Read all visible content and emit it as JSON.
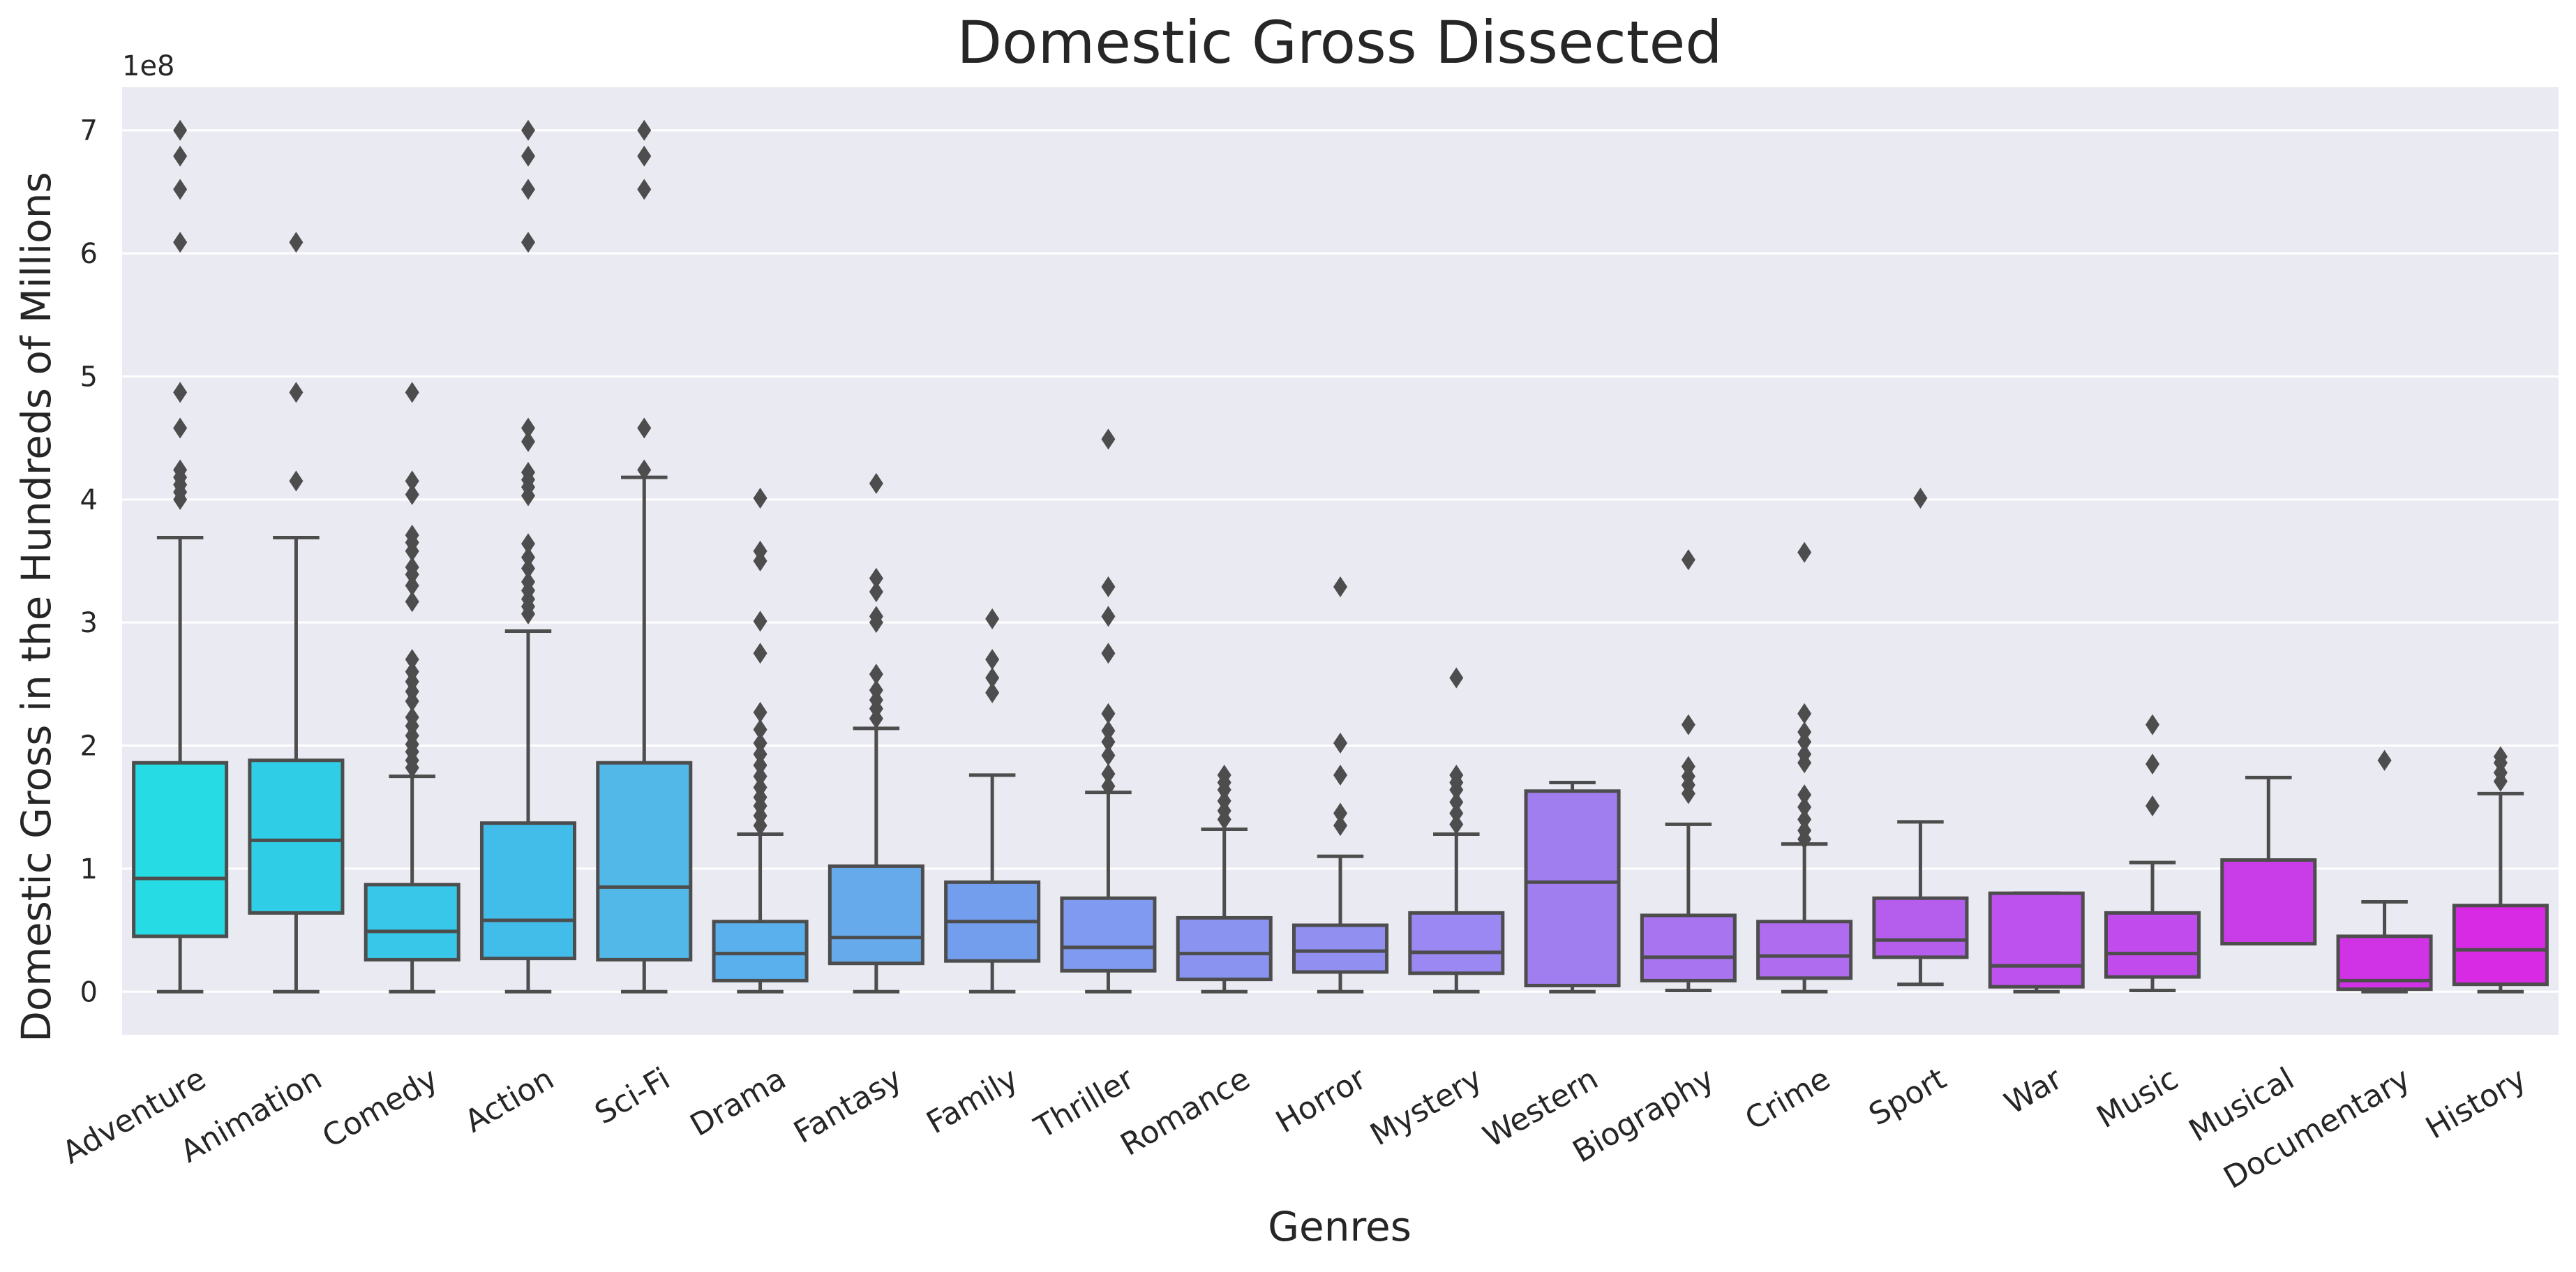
{
  "chart_data": {
    "type": "box",
    "title": "Domestic Gross Dissected",
    "xlabel": "Genres",
    "ylabel": "Domestic Gross in the Hundreds of Millions",
    "y_offset_label": "1e8",
    "y_scale_factor": 100000000,
    "ylim": [
      -0.35,
      7.35
    ],
    "yticks": [
      0,
      1,
      2,
      3,
      4,
      5,
      6,
      7
    ],
    "grid": true,
    "colors": {
      "background": "#eaeaf2",
      "grid": "#ffffff",
      "box_edge": "#4d4d4d",
      "outlier": "#4d4d4d"
    },
    "categories": [
      "Adventure",
      "Animation",
      "Comedy",
      "Action",
      "Sci-Fi",
      "Drama",
      "Fantasy",
      "Family",
      "Thriller",
      "Romance",
      "Horror",
      "Mystery",
      "Western",
      "Biography",
      "Crime",
      "Sport",
      "War",
      "Music",
      "Musical",
      "Documentary",
      "History"
    ],
    "boxes": [
      {
        "whislo": 0.0,
        "q1": 0.45,
        "med": 0.92,
        "q3": 1.86,
        "whishi": 3.69,
        "color": "#26dbe3",
        "fliers": [
          4.0,
          4.06,
          4.12,
          4.18,
          4.24,
          4.58,
          4.87,
          6.09,
          6.52,
          6.79,
          7.0
        ]
      },
      {
        "whislo": 0.0,
        "q1": 0.64,
        "med": 1.23,
        "q3": 1.88,
        "whishi": 3.69,
        "color": "#30cde6",
        "fliers": [
          4.15,
          4.87,
          6.09
        ]
      },
      {
        "whislo": 0.0,
        "q1": 0.26,
        "med": 0.49,
        "q3": 0.87,
        "whishi": 1.75,
        "color": "#38c7e8",
        "fliers": [
          1.82,
          1.88,
          1.95,
          2.01,
          2.08,
          2.16,
          2.23,
          2.36,
          2.44,
          2.52,
          2.6,
          2.7,
          3.17,
          3.3,
          3.39,
          3.45,
          3.58,
          3.65,
          3.71,
          4.04,
          4.15,
          4.87
        ]
      },
      {
        "whislo": 0.0,
        "q1": 0.27,
        "med": 0.58,
        "q3": 1.37,
        "whishi": 2.93,
        "color": "#42bdea",
        "fliers": [
          3.07,
          3.13,
          3.19,
          3.26,
          3.33,
          3.44,
          3.53,
          3.64,
          4.03,
          4.1,
          4.16,
          4.22,
          4.47,
          4.58,
          6.09,
          6.52,
          6.79,
          7.0
        ]
      },
      {
        "whislo": 0.0,
        "q1": 0.26,
        "med": 0.85,
        "q3": 1.86,
        "whishi": 4.18,
        "color": "#52b8e8",
        "fliers": [
          4.24,
          4.58,
          6.52,
          6.79,
          7.0
        ]
      },
      {
        "whislo": 0.0,
        "q1": 0.09,
        "med": 0.31,
        "q3": 0.57,
        "whishi": 1.28,
        "color": "#5ab0ec",
        "fliers": [
          1.35,
          1.43,
          1.51,
          1.58,
          1.66,
          1.75,
          1.84,
          1.93,
          2.02,
          2.13,
          2.27,
          2.75,
          3.01,
          3.5,
          3.58,
          4.01
        ]
      },
      {
        "whislo": 0.0,
        "q1": 0.23,
        "med": 0.44,
        "q3": 1.02,
        "whishi": 2.14,
        "color": "#66aaec",
        "fliers": [
          2.22,
          2.3,
          2.37,
          2.45,
          2.58,
          3.0,
          3.05,
          3.25,
          3.36,
          4.13
        ]
      },
      {
        "whislo": 0.0,
        "q1": 0.25,
        "med": 0.57,
        "q3": 0.89,
        "whishi": 1.76,
        "color": "#739eee",
        "fliers": [
          2.43,
          2.55,
          2.7,
          3.03
        ]
      },
      {
        "whislo": 0.0,
        "q1": 0.17,
        "med": 0.36,
        "q3": 0.76,
        "whishi": 1.62,
        "color": "#7f9af0",
        "fliers": [
          1.67,
          1.77,
          1.92,
          2.03,
          2.12,
          2.26,
          2.75,
          3.05,
          3.29,
          4.49
        ]
      },
      {
        "whislo": 0.0,
        "q1": 0.1,
        "med": 0.31,
        "q3": 0.6,
        "whishi": 1.32,
        "color": "#8a94f0",
        "fliers": [
          1.4,
          1.47,
          1.55,
          1.64,
          1.7,
          1.76
        ]
      },
      {
        "whislo": 0.0,
        "q1": 0.16,
        "med": 0.33,
        "q3": 0.54,
        "whishi": 1.1,
        "color": "#9190f0",
        "fliers": [
          1.35,
          1.45,
          1.76,
          2.02,
          3.29
        ]
      },
      {
        "whislo": 0.0,
        "q1": 0.15,
        "med": 0.32,
        "q3": 0.64,
        "whishi": 1.28,
        "color": "#9b88f2",
        "fliers": [
          1.36,
          1.45,
          1.54,
          1.64,
          1.7,
          1.76,
          2.55
        ]
      },
      {
        "whislo": 0.0,
        "q1": 0.05,
        "med": 0.89,
        "q3": 1.63,
        "whishi": 1.7,
        "color": "#a07ef0",
        "fliers": []
      },
      {
        "whislo": 0.01,
        "q1": 0.09,
        "med": 0.28,
        "q3": 0.62,
        "whishi": 1.36,
        "color": "#a874f0",
        "fliers": [
          1.61,
          1.68,
          1.75,
          1.83,
          2.17,
          3.51
        ]
      },
      {
        "whislo": 0.0,
        "q1": 0.11,
        "med": 0.29,
        "q3": 0.57,
        "whishi": 1.2,
        "color": "#b06cef",
        "fliers": [
          1.24,
          1.31,
          1.4,
          1.5,
          1.6,
          1.86,
          1.93,
          2.03,
          2.11,
          2.26,
          3.57
        ]
      },
      {
        "whislo": 0.06,
        "q1": 0.28,
        "med": 0.42,
        "q3": 0.76,
        "whishi": 1.38,
        "color": "#b55eee",
        "fliers": [
          4.01
        ]
      },
      {
        "whislo": 0.0,
        "q1": 0.04,
        "med": 0.21,
        "q3": 0.8,
        "whishi": 0.8,
        "color": "#bd52ee",
        "fliers": []
      },
      {
        "whislo": 0.01,
        "q1": 0.12,
        "med": 0.31,
        "q3": 0.64,
        "whishi": 1.05,
        "color": "#c24bee",
        "fliers": [
          1.51,
          1.85,
          2.17
        ]
      },
      {
        "whislo": 0.39,
        "q1": 0.39,
        "med": 0.39,
        "q3": 1.07,
        "whishi": 1.74,
        "color": "#c93de8",
        "fliers": []
      },
      {
        "whislo": 0.0,
        "q1": 0.02,
        "med": 0.09,
        "q3": 0.45,
        "whishi": 0.73,
        "color": "#d032e6",
        "fliers": [
          1.88
        ]
      },
      {
        "whislo": 0.0,
        "q1": 0.06,
        "med": 0.34,
        "q3": 0.7,
        "whishi": 1.61,
        "color": "#d829e4",
        "fliers": [
          1.71,
          1.78,
          1.86,
          1.91
        ]
      }
    ]
  }
}
